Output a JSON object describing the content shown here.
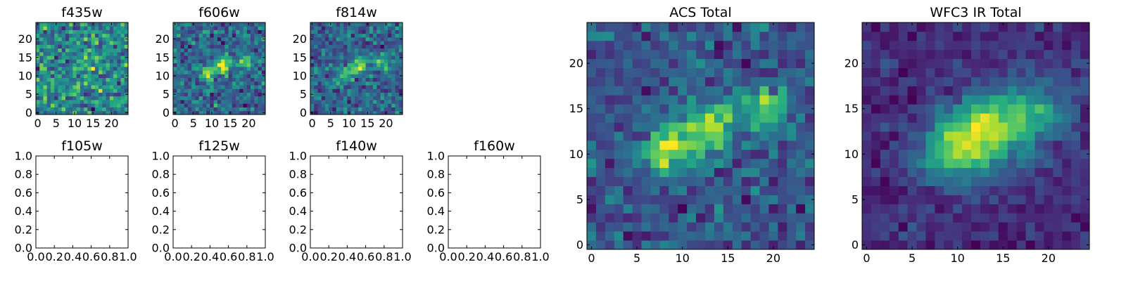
{
  "chart_data": [
    {
      "type": "heatmap",
      "title": "f435w",
      "xticks": [
        "0",
        "5",
        "10",
        "15",
        "20"
      ],
      "yticks": [
        "0",
        "5",
        "10",
        "15",
        "20"
      ],
      "xlim": [
        -0.5,
        24.5
      ],
      "ylim": [
        -0.5,
        24.5
      ],
      "grid_size": 25,
      "colormap": "viridis",
      "noise": 0.95,
      "sigma": 1.0,
      "sources": [
        [
          13,
          14,
          0.55
        ],
        [
          17,
          12,
          0.3
        ]
      ],
      "seed": 11
    },
    {
      "type": "heatmap",
      "title": "f606w",
      "xticks": [
        "0",
        "5",
        "10",
        "15",
        "20"
      ],
      "yticks": [
        "0",
        "5",
        "10",
        "15",
        "20"
      ],
      "xlim": [
        -0.5,
        24.5
      ],
      "ylim": [
        -0.5,
        24.5
      ],
      "grid_size": 25,
      "colormap": "viridis",
      "noise": 0.7,
      "sigma": 1.0,
      "sources": [
        [
          13,
          13,
          1.0
        ],
        [
          9,
          11,
          0.75
        ],
        [
          19,
          14,
          0.7
        ]
      ],
      "seed": 23
    },
    {
      "type": "heatmap",
      "title": "f814w",
      "xticks": [
        "0",
        "5",
        "10",
        "15",
        "20"
      ],
      "yticks": [
        "0",
        "5",
        "10",
        "15",
        "20"
      ],
      "xlim": [
        -0.5,
        24.5
      ],
      "ylim": [
        -0.5,
        24.5
      ],
      "grid_size": 25,
      "colormap": "viridis",
      "noise": 0.75,
      "sigma": 1.0,
      "sources": [
        [
          13,
          13,
          1.0
        ],
        [
          9,
          11,
          0.7
        ],
        [
          19,
          14,
          0.75
        ]
      ],
      "seed": 37
    },
    {
      "type": "heatmap",
      "title": "f105w",
      "xticks": [
        "0.0",
        "0.2",
        "0.4",
        "0.6",
        "0.8",
        "1.0"
      ],
      "yticks": [
        "0.0",
        "0.2",
        "0.4",
        "0.6",
        "0.8",
        "1.0"
      ],
      "xlim": [
        0,
        1
      ],
      "ylim": [
        0,
        1
      ],
      "empty": true
    },
    {
      "type": "heatmap",
      "title": "f125w",
      "xticks": [
        "0.0",
        "0.2",
        "0.4",
        "0.6",
        "0.8",
        "1.0"
      ],
      "yticks": [
        "0.0",
        "0.2",
        "0.4",
        "0.6",
        "0.8",
        "1.0"
      ],
      "xlim": [
        0,
        1
      ],
      "ylim": [
        0,
        1
      ],
      "empty": true
    },
    {
      "type": "heatmap",
      "title": "f140w",
      "xticks": [
        "0.0",
        "0.2",
        "0.4",
        "0.6",
        "0.8",
        "1.0"
      ],
      "yticks": [
        "0.0",
        "0.2",
        "0.4",
        "0.6",
        "0.8",
        "1.0"
      ],
      "xlim": [
        0,
        1
      ],
      "ylim": [
        0,
        1
      ],
      "empty": true
    },
    {
      "type": "heatmap",
      "title": "f160w",
      "xticks": [
        "0.0",
        "0.2",
        "0.4",
        "0.6",
        "0.8",
        "1.0"
      ],
      "yticks": [
        "0.0",
        "0.2",
        "0.4",
        "0.6",
        "0.8",
        "1.0"
      ],
      "xlim": [
        0,
        1
      ],
      "ylim": [
        0,
        1
      ],
      "empty": true
    },
    {
      "type": "heatmap",
      "title": "ACS Total",
      "xticks": [
        "0",
        "5",
        "10",
        "15",
        "20"
      ],
      "yticks": [
        "0",
        "5",
        "10",
        "15",
        "20"
      ],
      "xlim": [
        -0.5,
        24.5
      ],
      "ylim": [
        -0.5,
        24.5
      ],
      "grid_size": 25,
      "colormap": "viridis",
      "noise": 0.45,
      "sigma": 1.2,
      "sources": [
        [
          13,
          13,
          1.0
        ],
        [
          8.5,
          10.5,
          0.85
        ],
        [
          19,
          15,
          0.7
        ]
      ],
      "seed": 51
    },
    {
      "type": "heatmap",
      "title": "WFC3 IR Total",
      "xticks": [
        "0",
        "5",
        "10",
        "15",
        "20"
      ],
      "yticks": [
        "0",
        "5",
        "10",
        "15",
        "20"
      ],
      "xlim": [
        -0.5,
        24.5
      ],
      "ylim": [
        -0.5,
        24.5
      ],
      "grid_size": 25,
      "colormap": "viridis",
      "noise": 0.28,
      "sigma": 1.8,
      "sources": [
        [
          13.5,
          13,
          1.0
        ],
        [
          9.5,
          10.5,
          0.85
        ],
        [
          19,
          14.5,
          0.6
        ]
      ],
      "seed": 67
    }
  ]
}
